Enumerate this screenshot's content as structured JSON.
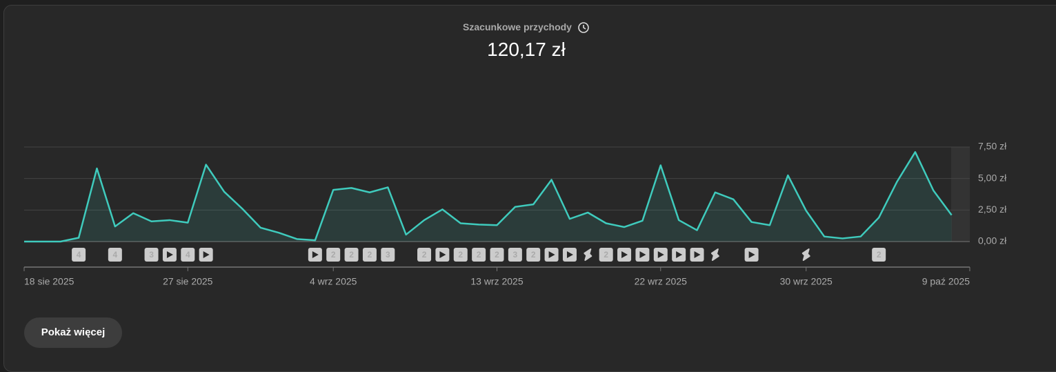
{
  "header": {
    "title": "Szacunkowe przychody",
    "total": "120,17 zł"
  },
  "chart_data": {
    "type": "area",
    "categories": [
      "18 sie 2025",
      null,
      null,
      null,
      null,
      null,
      null,
      null,
      null,
      "27 sie 2025",
      null,
      null,
      null,
      null,
      null,
      null,
      null,
      "4 wrz 2025",
      null,
      null,
      null,
      null,
      null,
      null,
      null,
      null,
      "13 wrz 2025",
      null,
      null,
      null,
      null,
      null,
      null,
      null,
      null,
      "22 wrz 2025",
      null,
      null,
      null,
      null,
      null,
      null,
      null,
      "30 wrz 2025",
      null,
      null,
      null,
      null,
      null,
      null,
      null,
      null,
      "9 paź 2025"
    ],
    "values": [
      0,
      0,
      0,
      0.3,
      5.8,
      1.2,
      2.25,
      1.6,
      1.7,
      1.5,
      6.1,
      3.95,
      2.6,
      1.1,
      0.7,
      0.2,
      0.1,
      4.1,
      4.25,
      3.9,
      4.3,
      0.55,
      1.7,
      2.55,
      1.45,
      1.35,
      1.3,
      2.75,
      2.95,
      4.9,
      1.8,
      2.3,
      1.45,
      1.15,
      1.65,
      6.05,
      1.7,
      0.9,
      3.9,
      3.35,
      1.55,
      1.3,
      5.25,
      2.45,
      0.4,
      0.25,
      0.4,
      1.9,
      4.75,
      7.1,
      4.05,
      2.1,
      null
    ],
    "markers": [
      null,
      null,
      null,
      "4",
      null,
      "4",
      null,
      "3",
      "play",
      "4",
      "play",
      null,
      null,
      null,
      null,
      null,
      "play",
      "2",
      "2",
      "2",
      "3",
      null,
      "2",
      "play",
      "2",
      "2",
      "2",
      "3",
      "2",
      "play",
      "play",
      "shorts",
      "2",
      "play",
      "play",
      "play",
      "play",
      "play",
      "shorts",
      null,
      "play",
      null,
      null,
      "shorts",
      null,
      null,
      null,
      "2",
      null,
      null,
      null,
      null,
      null
    ],
    "color": "#3fcbbd",
    "ylim": [
      0,
      7.5
    ],
    "yticks": [
      {
        "value": 0,
        "label": "0,00 zł"
      },
      {
        "value": 2.5,
        "label": "2,50 zł"
      },
      {
        "value": 5,
        "label": "5,00 zł"
      },
      {
        "value": 7.5,
        "label": "7,50 zł"
      }
    ],
    "grid": true
  },
  "button": {
    "label": "Pokaż więcej"
  }
}
